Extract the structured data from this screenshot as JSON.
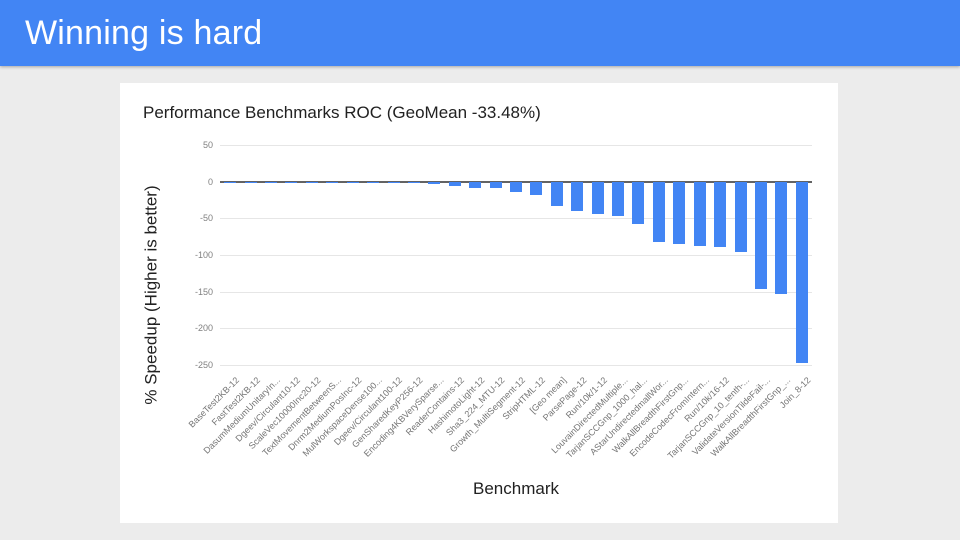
{
  "slide": {
    "title": "Winning is hard",
    "header_color": "#4285f4",
    "background_color": "#ececec"
  },
  "chart_data": {
    "type": "bar",
    "title": "Performance Benchmarks ROC (GeoMean -33.48%)",
    "xlabel": "Benchmark",
    "ylabel": "% Speedup (Higher is better)",
    "ylim": [
      -250,
      50
    ],
    "yticks": [
      50,
      0,
      -50,
      -100,
      -150,
      -200,
      -250
    ],
    "grid": true,
    "legend": "none",
    "bar_color": "#4285f4",
    "categories": [
      "BaseTest2KB-12",
      "FastTest2KB-12",
      "DasumMediumUnitaryIn...",
      "Dgeev/Circulant10-12",
      "ScaleVec10000Inc20-12",
      "TextMovementBetweenS...",
      "Dnrm2MediumPosInc-12",
      "MulWorkspaceDense100...",
      "Dgeev/Circulant100-12",
      "GenSharedKeyP256-12",
      "Encoding4KBVerySparse...",
      "ReaderContains-12",
      "HashimotoLight-12",
      "Sha3_224_MTU-12",
      "Growth_MultiSegment-12",
      "StripHTML-12",
      "[Geo mean]",
      "ParsePage-12",
      "Run/10k/1-12",
      "LouvainDirectedMultiple...",
      "TarjanSCCGnp_1000_hal...",
      "AStarUndirectedmallWor...",
      "WalkAllBreadthFirstGnp...",
      "EncodeCodecFromIntern...",
      "Run/10k/16-12",
      "TarjanSCCGnp_10_tenth-...",
      "ValidateVersionTildeFail-...",
      "WalkAllBreadthFirstGnp_...",
      "Join_8-12"
    ],
    "values": [
      -0.2,
      -0.2,
      -0.3,
      -0.3,
      -0.4,
      -0.5,
      -0.5,
      -0.6,
      -0.7,
      -0.8,
      -3,
      -6,
      -8.5,
      -9,
      -13.5,
      -18.5,
      -33.48,
      -40,
      -44.5,
      -46.5,
      -58,
      -82,
      -85,
      -88,
      -88.5,
      -96,
      -147,
      -153,
      -247
    ]
  }
}
